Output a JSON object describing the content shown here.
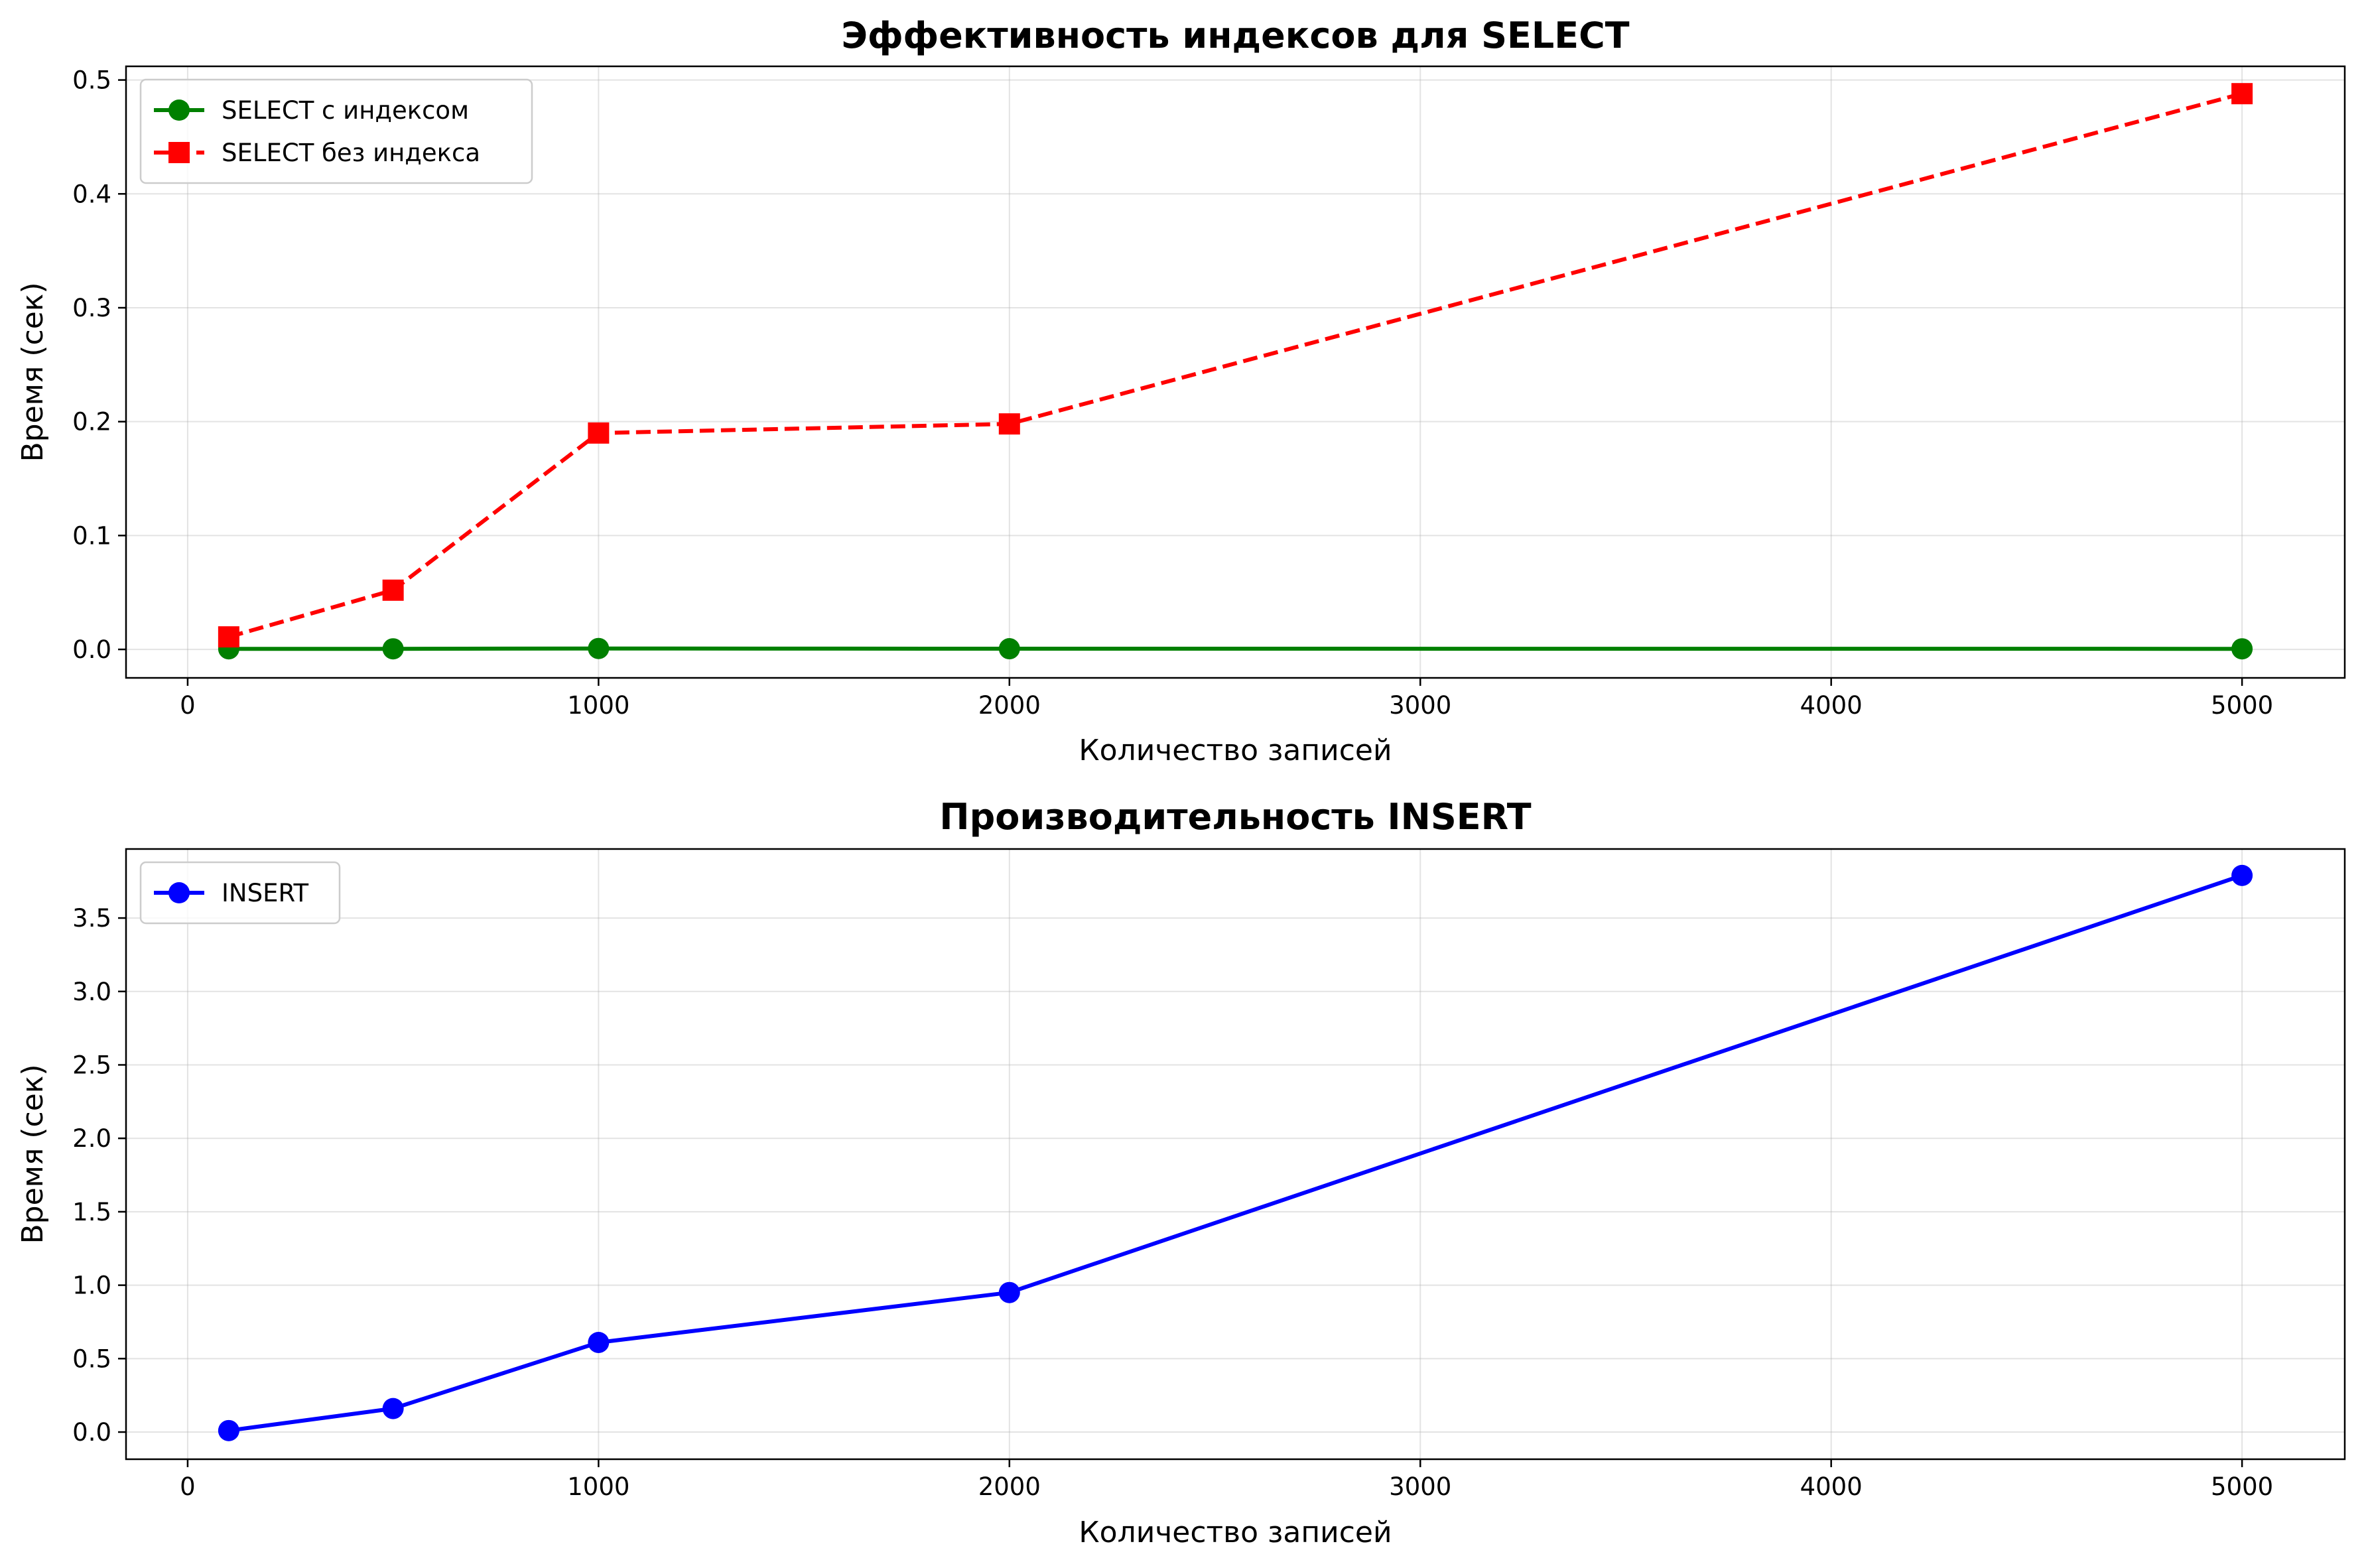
{
  "chart_data": [
    {
      "type": "line",
      "title": "Эффективность индексов для SELECT",
      "xlabel": "Количество записей",
      "ylabel": "Время (сек)",
      "xlim": [
        -150,
        5250
      ],
      "ylim": [
        -0.025,
        0.512
      ],
      "xticks": [
        0,
        1000,
        2000,
        3000,
        4000,
        5000
      ],
      "xtick_labels": [
        "0",
        "1000",
        "2000",
        "3000",
        "4000",
        "5000"
      ],
      "yticks": [
        0.0,
        0.1,
        0.2,
        0.3,
        0.4,
        0.5
      ],
      "ytick_labels": [
        "0.0",
        "0.1",
        "0.2",
        "0.3",
        "0.4",
        "0.5"
      ],
      "grid": true,
      "legend": "top-left",
      "series": [
        {
          "name": "SELECT с индексом",
          "color": "#008000",
          "marker": "circle",
          "linestyle": "solid",
          "x": [
            100,
            500,
            1000,
            2000,
            5000
          ],
          "y": [
            0.0005,
            0.0005,
            0.0008,
            0.0006,
            0.0005
          ]
        },
        {
          "name": "SELECT без индекса",
          "color": "#ff0000",
          "marker": "square",
          "linestyle": "dashed",
          "x": [
            100,
            500,
            1000,
            2000,
            5000
          ],
          "y": [
            0.011,
            0.052,
            0.19,
            0.198,
            0.488
          ]
        }
      ]
    },
    {
      "type": "line",
      "title": "Производительность INSERT",
      "xlabel": "Количество записей",
      "ylabel": "Время (сек)",
      "xlim": [
        -150,
        5250
      ],
      "ylim": [
        -0.185,
        3.97
      ],
      "xticks": [
        0,
        1000,
        2000,
        3000,
        4000,
        5000
      ],
      "xtick_labels": [
        "0",
        "1000",
        "2000",
        "3000",
        "4000",
        "5000"
      ],
      "yticks": [
        0.0,
        0.5,
        1.0,
        1.5,
        2.0,
        2.5,
        3.0,
        3.5
      ],
      "ytick_labels": [
        "0.0",
        "0.5",
        "1.0",
        "1.5",
        "2.0",
        "2.5",
        "3.0",
        "3.5"
      ],
      "grid": true,
      "legend": "top-left",
      "series": [
        {
          "name": "INSERT",
          "color": "#0000ff",
          "marker": "circle",
          "linestyle": "solid",
          "x": [
            100,
            500,
            1000,
            2000,
            5000
          ],
          "y": [
            0.01,
            0.16,
            0.61,
            0.95,
            3.79
          ]
        }
      ]
    }
  ]
}
